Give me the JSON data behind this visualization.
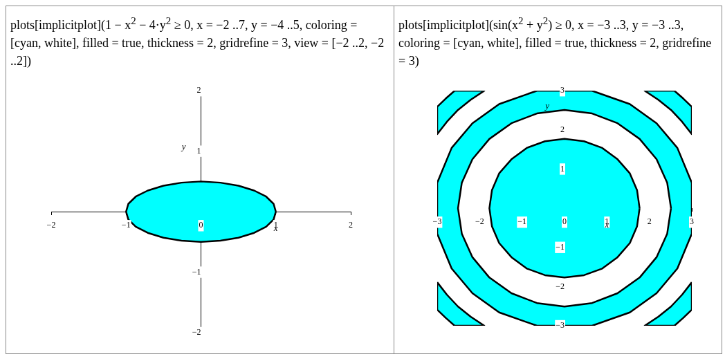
{
  "chart_data": [
    {
      "type": "area",
      "title": "plots[implicitplot](1 − x$^{2}$ − 4·y$^{2}$ ≥ 0, x = −2 ..7, y = −4 ..5, coloring = [cyan, white], filled = true, thickness = 2, gridrefine = 3, view = [−2 ..2, −2 ..2])",
      "xlabel": "x",
      "ylabel": "y",
      "xlim": [
        -2,
        2
      ],
      "ylim": [
        -2,
        2
      ],
      "xticks": [
        -2,
        -1,
        0,
        1,
        2
      ],
      "yticks": [
        -2,
        -1,
        1,
        2
      ],
      "series": [
        {
          "color": "#00ffff",
          "x": [
            1,
            0.97,
            0.87,
            0.71,
            0.5,
            0.26,
            0,
            -0.26,
            -0.5,
            -0.71,
            -0.87,
            -0.97,
            -1,
            -0.97,
            -0.87,
            -0.71,
            -0.5,
            -0.26,
            0,
            0.26,
            0.5,
            0.71,
            0.87,
            0.97,
            1
          ],
          "values": [
            0,
            0.13,
            0.25,
            0.35,
            0.43,
            0.48,
            0.5,
            0.48,
            0.43,
            0.35,
            0.25,
            0.13,
            0,
            -0.13,
            -0.25,
            -0.35,
            -0.43,
            -0.48,
            -0.5,
            -0.48,
            -0.43,
            -0.35,
            -0.25,
            -0.13,
            0
          ]
        }
      ]
    },
    {
      "type": "area",
      "title": "plots[implicitplot](sin(x$^{2}$ + y$^{2}$) ≥ 0, x = −3 ..3, y = −3 ..3, coloring = [cyan, white], filled = true, thickness = 2, gridrefine = 3)",
      "xlabel": "x",
      "ylabel": "y",
      "xlim": [
        -3,
        3
      ],
      "ylim": [
        -3,
        3
      ],
      "xticks": [
        -3,
        -2,
        -1,
        0,
        1,
        2,
        3
      ],
      "yticks": [
        -3,
        -2,
        -1,
        1,
        2,
        3
      ],
      "series": [
        {
          "color": "#00ffff",
          "x": [
            3,
            2.66,
            2.17,
            1.54,
            0.65,
            -0.65,
            -1.54,
            -2.17,
            -2.66,
            -3,
            -3,
            -2.66,
            -2.17,
            -1.54,
            -0.65,
            0.65,
            1.54,
            2.17,
            2.66,
            3,
            3
          ],
          "values": [
            0.65,
            1.54,
            2.17,
            2.66,
            3,
            3,
            2.66,
            2.17,
            1.54,
            0.65,
            -0.65,
            -1.54,
            -2.17,
            -2.66,
            -3,
            -3,
            -2.66,
            -2.17,
            -1.54,
            -0.65,
            0.65
          ]
        },
        {
          "color": "#ffffff",
          "x": [
            2.51,
            2.42,
            2.17,
            1.77,
            1.25,
            0.65,
            0,
            -0.65,
            -1.25,
            -1.77,
            -2.17,
            -2.42,
            -2.51,
            -2.42,
            -2.17,
            -1.77,
            -1.25,
            -0.65,
            0,
            0.65,
            1.25,
            1.77,
            2.17,
            2.42,
            2.51
          ],
          "values": [
            0,
            0.65,
            1.25,
            1.77,
            2.17,
            2.42,
            2.51,
            2.42,
            2.17,
            1.77,
            1.25,
            0.65,
            0,
            -0.65,
            -1.25,
            -1.77,
            -2.17,
            -2.42,
            -2.51,
            -2.42,
            -2.17,
            -1.77,
            -1.25,
            -0.65,
            0
          ]
        },
        {
          "color": "#00ffff",
          "x": [
            1.77,
            1.71,
            1.54,
            1.25,
            0.89,
            0.46,
            0,
            -0.46,
            -0.89,
            -1.25,
            -1.54,
            -1.71,
            -1.77,
            -1.71,
            -1.54,
            -1.25,
            -0.89,
            -0.46,
            0,
            0.46,
            0.89,
            1.25,
            1.54,
            1.71,
            1.77
          ],
          "values": [
            0,
            0.46,
            0.89,
            1.25,
            1.54,
            1.71,
            1.77,
            1.71,
            1.54,
            1.25,
            0.89,
            0.46,
            0,
            -0.46,
            -0.89,
            -1.25,
            -1.54,
            -1.71,
            -1.77,
            -1.71,
            -1.54,
            -1.25,
            -0.89,
            -0.46,
            0
          ]
        },
        {
          "color": "#00ffff",
          "x": [
            3,
            2.77,
            2.51,
            2.21,
            1.89,
            2.59,
            2.8,
            3,
            3
          ],
          "values": [
            1.89,
            2.21,
            2.51,
            2.77,
            3,
            3,
            2.8,
            2.59,
            1.89
          ]
        },
        {
          "color": "#00ffff",
          "x": [
            -3,
            -2.77,
            -2.51,
            -2.21,
            -1.89,
            -2.59,
            -2.8,
            -3,
            -3
          ],
          "values": [
            1.89,
            2.21,
            2.51,
            2.77,
            3,
            3,
            2.8,
            2.59,
            1.89
          ]
        },
        {
          "color": "#00ffff",
          "x": [
            -3,
            -2.77,
            -2.51,
            -2.21,
            -1.89,
            -2.59,
            -2.8,
            -3,
            -3
          ],
          "values": [
            -1.89,
            -2.21,
            -2.51,
            -2.77,
            -3,
            -3,
            -2.8,
            -2.59,
            -1.89
          ]
        },
        {
          "color": "#00ffff",
          "x": [
            3,
            2.77,
            2.51,
            2.21,
            1.89,
            2.59,
            2.8,
            3,
            3
          ],
          "values": [
            -1.89,
            -2.21,
            -2.51,
            -2.77,
            -3,
            -3,
            -2.8,
            -2.59,
            -1.89
          ]
        }
      ]
    }
  ]
}
